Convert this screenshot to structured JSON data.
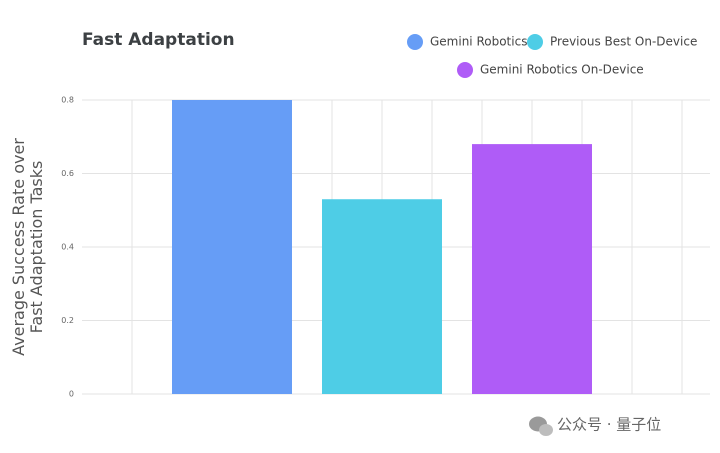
{
  "chart_data": {
    "type": "bar",
    "title": "Fast Adaptation",
    "y_label": "Average Success Rate over Fast Adaptation Tasks",
    "categories": [
      null
    ],
    "series": [
      {
        "name": "Gemini Robotics",
        "color": "#669df6",
        "values": [
          0.8
        ]
      },
      {
        "name": "Previous Best On-Device",
        "color": "#4ecde6",
        "values": [
          0.53
        ]
      },
      {
        "name": "Gemini Robotics On-Device",
        "color": "#af5cf7",
        "values": [
          0.68
        ]
      }
    ],
    "ylim": [
      0,
      0.8
    ],
    "yticks": [
      0,
      0.2,
      0.4,
      0.6,
      0.8
    ],
    "grid": true,
    "legend": "top-right",
    "watermark": "公众号 · 量子位"
  }
}
